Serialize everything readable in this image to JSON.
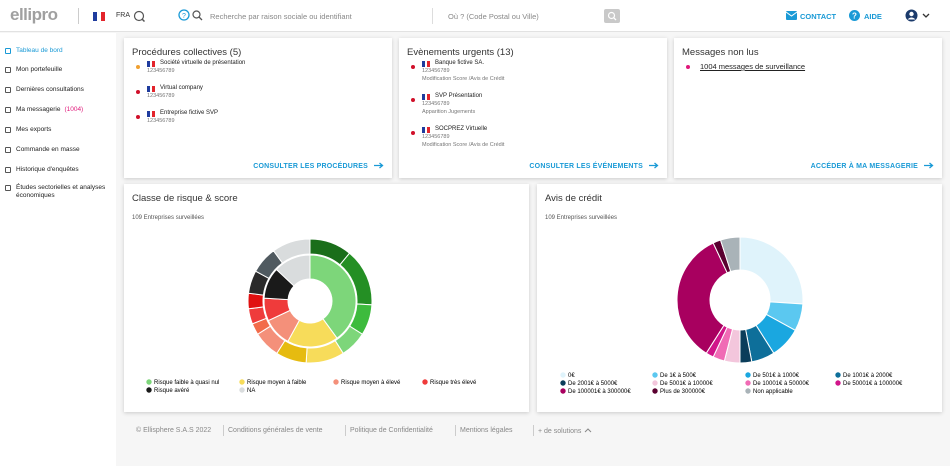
{
  "header": {
    "logo": "ellipro",
    "country": "FRA",
    "search_placeholder": "Recherche par raison sociale ou identifiant",
    "location_placeholder": "Où ? (Code Postal ou Ville)",
    "contact": "CONTACT",
    "help": "AIDE"
  },
  "sidebar": {
    "items": [
      "Tableau de bord",
      "Mon portefeuille",
      "Dernières consultations",
      "Ma messagerie",
      "Mes exports",
      "Commande en masse",
      "Historique d'enquêtes",
      "Études sectorielles et analyses économiques"
    ],
    "badge": "(1004)"
  },
  "cards": [
    {
      "title": "Procédures collectives (5)",
      "entries": [
        {
          "name": "Société virtuelle de présentation",
          "id": "123456789",
          "dot_color": "#f0a030"
        },
        {
          "name": "Virtual company",
          "id": "123456789",
          "dot_color": "#d0102a"
        },
        {
          "name": "Entreprise fictive SVP",
          "id": "123456789",
          "dot_color": "#d0102a"
        }
      ],
      "link": "CONSULTER LES PROCÉDURES"
    },
    {
      "title": "Evènements urgents (13)",
      "entries": [
        {
          "name": "Banque fictive SA.",
          "id": "123456789",
          "note": "Modification Score /Avis de Crédit",
          "dot_color": "#d0102a"
        },
        {
          "name": "SVP Présentation",
          "id": "123456789",
          "note": "Apparition Jugements",
          "dot_color": "#d0102a"
        },
        {
          "name": "SOCPREZ Virtuelle",
          "id": "123456789",
          "note": "Modification Score /Avis de Crédit",
          "dot_color": "#d0102a"
        }
      ],
      "link": "CONSULTER LES ÉVÉNEMENTS"
    },
    {
      "title": "Messages non lus",
      "message": "1004 messages de surveillance",
      "link": "ACCÉDER À MA MESSAGERIE"
    }
  ],
  "chart_data": [
    {
      "type": "donut",
      "title": "Classe de risque & score",
      "subtitle": "109 Entreprises surveillées",
      "categories": [
        "Risque faible à quasi nul",
        "Risque moyen à faible",
        "Risque moyen à élevé",
        "Risque très élevé",
        "Risque avéré",
        "NA"
      ],
      "colors": [
        "#7dd67a",
        "#f7dc5a",
        "#f4907a",
        "#ef3b3b",
        "#1a1a1a",
        "#d9dcdd"
      ],
      "values": [
        40,
        18,
        10,
        8,
        11,
        13
      ],
      "outer_values": [
        11,
        15,
        8,
        7,
        10,
        8,
        7,
        3,
        4,
        4,
        6,
        7,
        10
      ],
      "outer_colors": [
        "#1a6e1a",
        "#248f24",
        "#3dbb3d",
        "#7dd67a",
        "#f7dc5a",
        "#e6bb10",
        "#f4907a",
        "#f26b4a",
        "#ef3b3b",
        "#e01010",
        "#2a2a2a",
        "#505a60",
        "#d9dcdd"
      ]
    },
    {
      "type": "donut",
      "title": "Avis de crédit",
      "subtitle": "109 Entreprises surveillées",
      "categories": [
        "0€",
        "De 1€ à 500€",
        "De 501€ à 1000€",
        "De 1001€ à 2000€",
        "De 2001€ à 5000€",
        "De 5001€ à 10000€",
        "De 10001€ à 50000€",
        "De 50001€ à 100000€",
        "De 100001€ à 300000€",
        "Plus de 300000€",
        "Non applicable"
      ],
      "colors": [
        "#dff3fb",
        "#5bc8f0",
        "#1aa7e0",
        "#0e6f9a",
        "#0b3d5a",
        "#f3c6dc",
        "#f06bb5",
        "#d1158a",
        "#a8005f",
        "#5a0030",
        "#a9b3b8"
      ],
      "values": [
        26,
        7,
        8,
        6,
        3,
        4,
        3,
        2,
        34,
        2,
        5
      ]
    }
  ],
  "footer": {
    "items": [
      "© Ellisphere S.A.S 2022",
      "Conditions générales de vente",
      "Politique de Confidentialité",
      "Mentions légales",
      "+ de solutions"
    ]
  }
}
